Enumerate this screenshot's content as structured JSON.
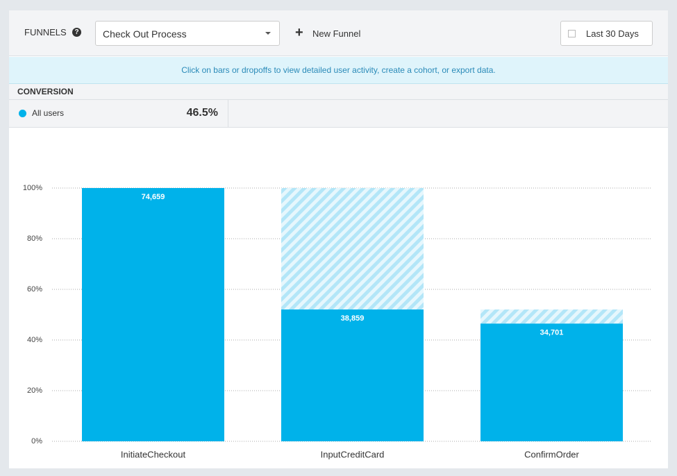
{
  "header": {
    "title": "FUNNELS",
    "funnel_select": "Check Out Process",
    "new_funnel": "New Funnel",
    "date_range": "Last 30 Days"
  },
  "banner": "Click on bars or dropoffs to view detailed user activity, create a cohort, or export data.",
  "conversion": {
    "title": "CONVERSION",
    "segment": "All users",
    "rate": "46.5%"
  },
  "chart_data": {
    "type": "bar",
    "categories": [
      "InitiateCheckout",
      "InputCreditCard",
      "ConfirmOrder"
    ],
    "values": [
      100,
      52.05,
      46.48
    ],
    "color": "#00b2ea",
    "dropoff_values": [
      null,
      47.95,
      5.57
    ],
    "dropoff_color": "#b3e6f8",
    "count_labels": [
      "74,659",
      "38,859",
      "34,701"
    ],
    "ylim": [
      0,
      100
    ],
    "yticks": [
      {
        "value": 0,
        "label": "0%"
      },
      {
        "value": 20,
        "label": "20%"
      },
      {
        "value": 40,
        "label": "40%"
      },
      {
        "value": 60,
        "label": "60%"
      },
      {
        "value": 80,
        "label": "80%"
      },
      {
        "value": 100,
        "label": "100%"
      }
    ],
    "grid": true
  }
}
